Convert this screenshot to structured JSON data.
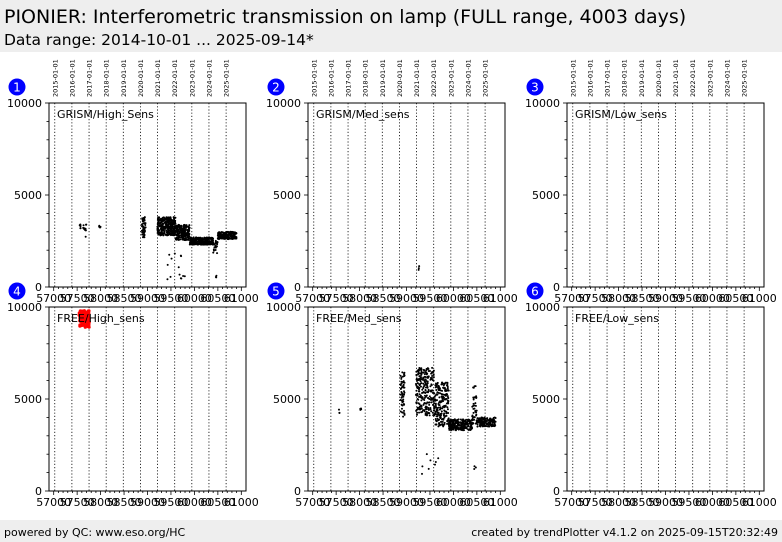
{
  "header": {
    "title": "PIONIER: Interferometric transmission on lamp (FULL range, 4003 days)",
    "subtitle": "Data range: 2014-10-01 ... 2025-09-14*"
  },
  "footer": {
    "left": "powered by QC: www.eso.org/HC",
    "right": "created by trendPlotter v4.1.2 on 2025-09-15T20:32:49"
  },
  "colors": {
    "points": "#000000",
    "highlight": "#ff0000",
    "badge": "#0000ff",
    "header_bg": "#eeeeee"
  },
  "chart_data": {
    "type": "scatter",
    "xlim": [
      56900,
      61100
    ],
    "ylim": [
      0,
      10000
    ],
    "x_ticks": [
      57000,
      57500,
      58000,
      58500,
      59000,
      59500,
      60000,
      60500,
      61000
    ],
    "x_tick_labels": [
      "57000",
      "57500",
      "58000",
      "58500",
      "59000",
      "59500",
      "60000",
      "60500",
      "61000"
    ],
    "y_ticks": [
      0,
      5000,
      10000
    ],
    "y_tick_labels": [
      "0",
      "5000",
      "10000"
    ],
    "date_markers": [
      {
        "label": "2015-01-01",
        "mjd": 57023
      },
      {
        "label": "2016-01-01",
        "mjd": 57388
      },
      {
        "label": "2017-01-01",
        "mjd": 57754
      },
      {
        "label": "2018-01-01",
        "mjd": 58119
      },
      {
        "label": "2019-01-01",
        "mjd": 58484
      },
      {
        "label": "2020-01-01",
        "mjd": 58849
      },
      {
        "label": "2021-01-01",
        "mjd": 59215
      },
      {
        "label": "2022-01-01",
        "mjd": 59580
      },
      {
        "label": "2023-01-01",
        "mjd": 59945
      },
      {
        "label": "2024-01-01",
        "mjd": 60310
      },
      {
        "label": "2025-01-01",
        "mjd": 60676
      }
    ],
    "panels": [
      {
        "number": "1",
        "label": "GRISM/High_Sens",
        "segments": [
          {
            "x": [
              57550,
              57580
            ],
            "y": [
              3100,
              3400
            ],
            "n": 6,
            "color": "#000000"
          },
          {
            "x": [
              57620,
              57700
            ],
            "y": [
              3000,
              3450
            ],
            "n": 10,
            "color": "#000000"
          },
          {
            "x": [
              57680,
              57690
            ],
            "y": [
              2700,
              2800
            ],
            "n": 1,
            "color": "#000000"
          },
          {
            "x": [
              57950,
              58000
            ],
            "y": [
              3200,
              3350
            ],
            "n": 4,
            "color": "#000000"
          },
          {
            "x": [
              58880,
              58960
            ],
            "y": [
              2700,
              3800
            ],
            "n": 60,
            "color": "#000000"
          },
          {
            "x": [
              59210,
              59600
            ],
            "y": [
              2800,
              3800
            ],
            "n": 300,
            "color": "#000000"
          },
          {
            "x": [
              59600,
              59900
            ],
            "y": [
              2550,
              3400
            ],
            "n": 220,
            "color": "#000000"
          },
          {
            "x": [
              59900,
              60400
            ],
            "y": [
              2300,
              2700
            ],
            "n": 300,
            "color": "#000000"
          },
          {
            "x": [
              60400,
              60500
            ],
            "y": [
              1800,
              2550
            ],
            "n": 20,
            "color": "#000000"
          },
          {
            "x": [
              60500,
              60900
            ],
            "y": [
              2600,
              3000
            ],
            "n": 200,
            "color": "#000000"
          },
          {
            "x": [
              59400,
              59800
            ],
            "y": [
              400,
              2100
            ],
            "n": 14,
            "color": "#000000"
          },
          {
            "x": [
              60440,
              60470
            ],
            "y": [
              500,
              750
            ],
            "n": 3,
            "color": "#000000"
          }
        ]
      },
      {
        "number": "2",
        "label": "GRISM/Med_sens",
        "segments": [
          {
            "x": [
              59250,
              59270
            ],
            "y": [
              800,
              1150
            ],
            "n": 3,
            "color": "#000000"
          }
        ]
      },
      {
        "number": "3",
        "label": "GRISM/Low_sens",
        "segments": []
      },
      {
        "number": "4",
        "label": "FREE/High_sens",
        "segments": [
          {
            "x": [
              57540,
              57760
            ],
            "y": [
              8900,
              9800
            ],
            "n": 120,
            "color": "#ff0000"
          }
        ]
      },
      {
        "number": "5",
        "label": "FREE/Med_sens",
        "segments": [
          {
            "x": [
              57560,
              57580
            ],
            "y": [
              4100,
              4500
            ],
            "n": 3,
            "color": "#000000"
          },
          {
            "x": [
              57950,
              58050
            ],
            "y": [
              4400,
              4500
            ],
            "n": 4,
            "color": "#000000"
          },
          {
            "x": [
              58870,
              58960
            ],
            "y": [
              4000,
              6500
            ],
            "n": 60,
            "color": "#000000"
          },
          {
            "x": [
              59200,
              59600
            ],
            "y": [
              4100,
              6700
            ],
            "n": 260,
            "color": "#000000"
          },
          {
            "x": [
              59600,
              59900
            ],
            "y": [
              3500,
              5900
            ],
            "n": 200,
            "color": "#000000"
          },
          {
            "x": [
              59900,
              60400
            ],
            "y": [
              3300,
              3900
            ],
            "n": 250,
            "color": "#000000"
          },
          {
            "x": [
              60400,
              60500
            ],
            "y": [
              3600,
              5700
            ],
            "n": 40,
            "color": "#000000"
          },
          {
            "x": [
              60500,
              60900
            ],
            "y": [
              3500,
              4000
            ],
            "n": 150,
            "color": "#000000"
          },
          {
            "x": [
              59300,
              59700
            ],
            "y": [
              800,
              2200
            ],
            "n": 8,
            "color": "#000000"
          },
          {
            "x": [
              60440,
              60480
            ],
            "y": [
              1100,
              1400
            ],
            "n": 3,
            "color": "#000000"
          }
        ]
      },
      {
        "number": "6",
        "label": "FREE/Low_sens",
        "segments": []
      }
    ]
  }
}
